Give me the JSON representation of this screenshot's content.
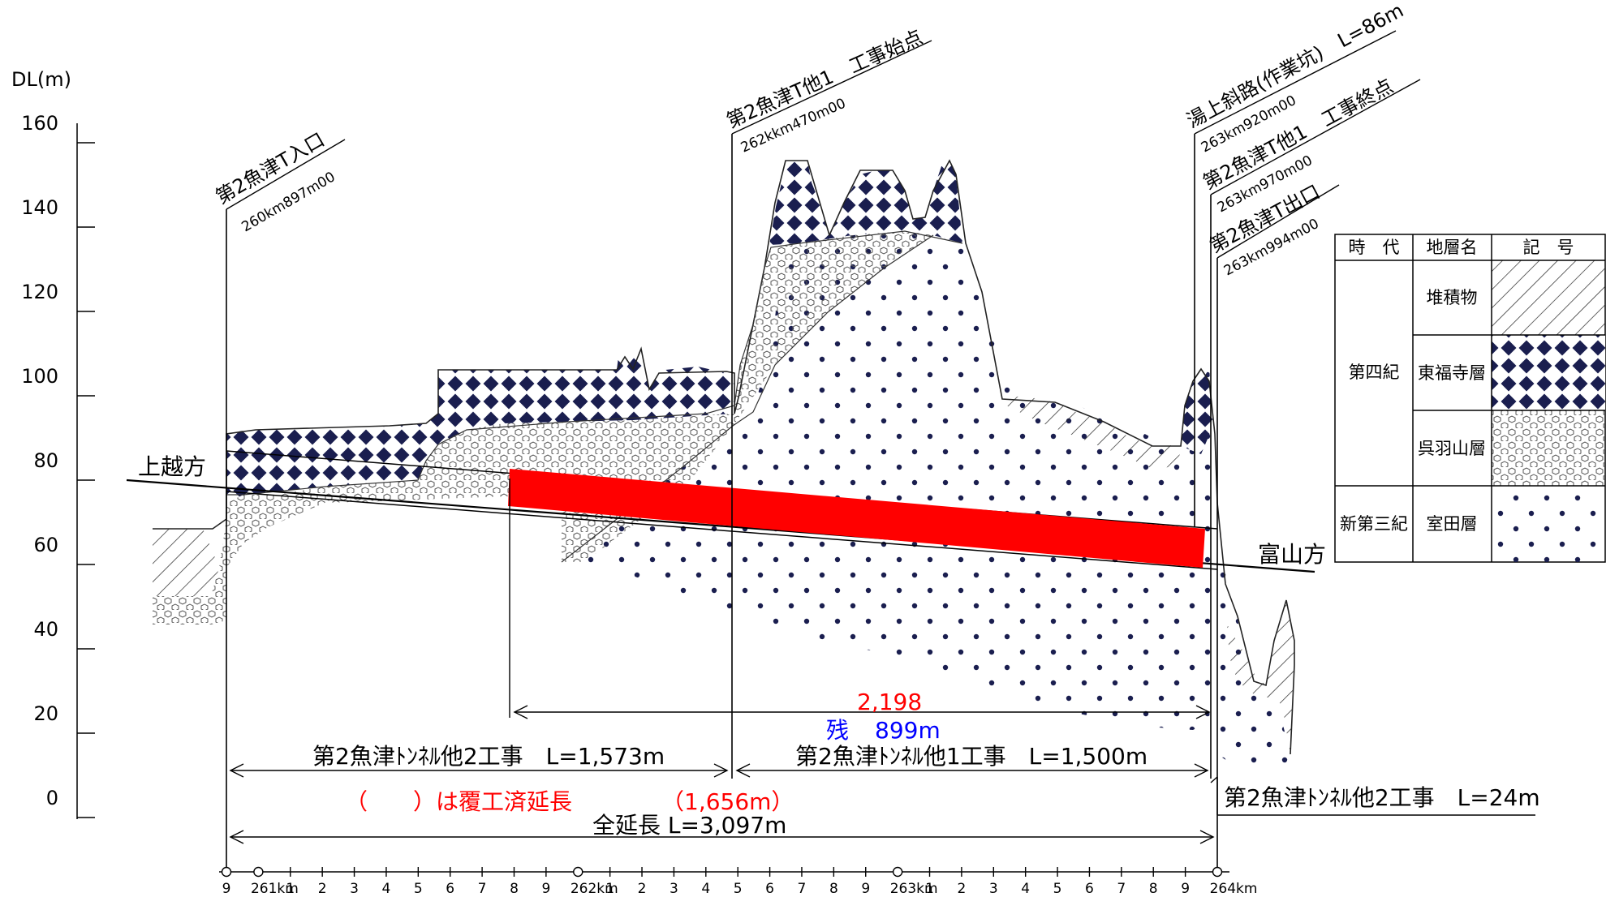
{
  "axis": {
    "unit_label": "DL(m)",
    "ticks": [
      "160",
      "140",
      "120",
      "100",
      "80",
      "60",
      "40",
      "20",
      "0"
    ]
  },
  "stations": [
    {
      "name": "第2魚津T入口",
      "km": "260km897m00"
    },
    {
      "name": "第2魚津T他1　工事始点",
      "km": "262kkm470m00"
    },
    {
      "name": "湯上斜路(作業坑)　L=86m",
      "km": "263km920m00"
    },
    {
      "name": "第2魚津T他1　工事終点",
      "km": "263km970m00"
    },
    {
      "name": "第2魚津T出口",
      "km": "263km994m00"
    }
  ],
  "directions": {
    "left": "上越方",
    "right": "富山方"
  },
  "dimensions": {
    "lining_total": "2,198",
    "remaining_prefix": "残",
    "remaining_value": "899m",
    "work2_label": "第2魚津ﾄﾝﾈﾙ他2工事　L=1,573m",
    "work1_label": "第2魚津ﾄﾝﾈﾙ他1工事　L=1,500m",
    "note": "（　　）は覆工済延長",
    "lining_done": "（1,656m）",
    "total_label": "全延長 L=3,097m",
    "work2b_label": "第2魚津ﾄﾝﾈﾙ他2工事　L=24m"
  },
  "km_axis": {
    "labels": [
      "9",
      "261km",
      "1",
      "2",
      "3",
      "4",
      "5",
      "6",
      "7",
      "8",
      "9",
      "262km",
      "1",
      "2",
      "3",
      "4",
      "5",
      "6",
      "7",
      "8",
      "9",
      "263km",
      "1",
      "2",
      "3",
      "4",
      "5",
      "6",
      "7",
      "8",
      "9",
      "264km"
    ]
  },
  "legend": {
    "headers": [
      "時　代",
      "地層名",
      "記　号"
    ],
    "era_1": "第四紀",
    "era_2": "新第三紀",
    "layers": [
      "堆積物",
      "東福寺層",
      "呉羽山層",
      "室田層"
    ]
  },
  "colors": {
    "lined_section": "#ff0000",
    "remaining_text": "#0000ff",
    "note_text": "#ff0000",
    "pattern_navy": "#1a1e4f"
  }
}
